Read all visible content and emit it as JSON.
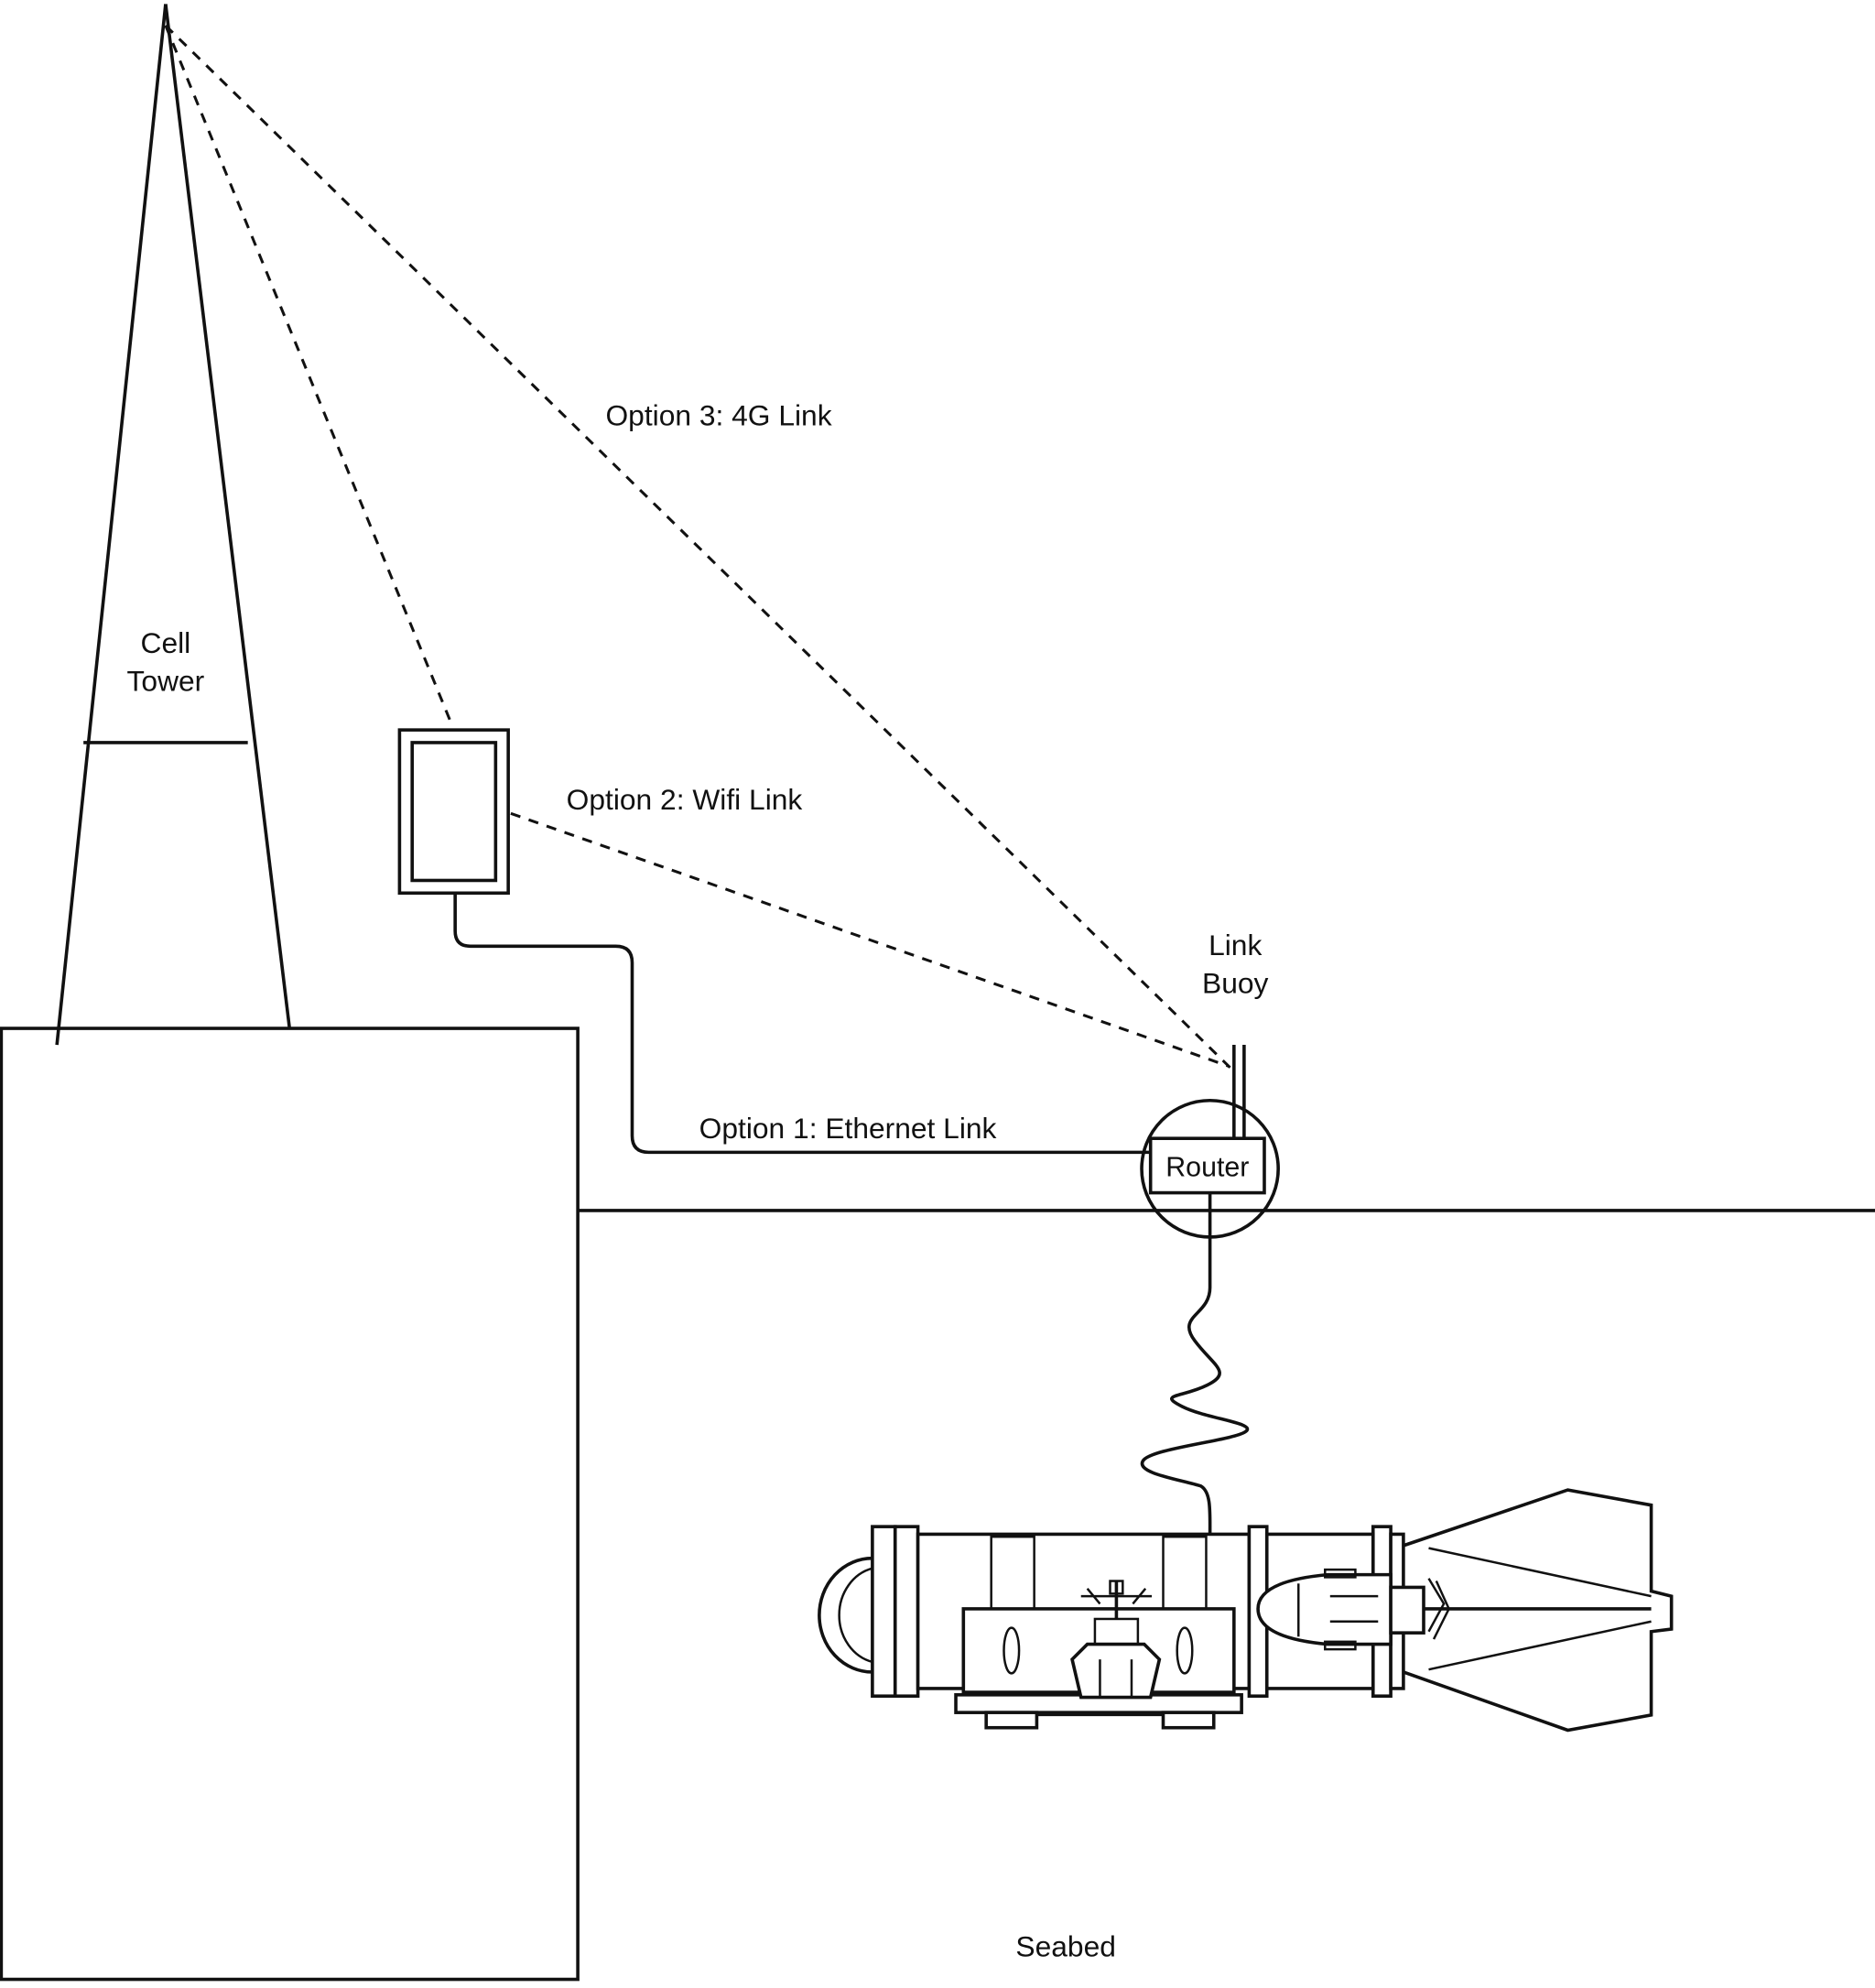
{
  "labels": {
    "cell_tower": [
      "Cell",
      "Tower"
    ],
    "option3": "Option 3: 4G Link",
    "option2": "Option 2: Wifi Link",
    "option1": "Option 1: Ethernet Link",
    "link_buoy": [
      "Link",
      "Buoy"
    ],
    "router": "Router",
    "seabed": "Seabed"
  },
  "colors": {
    "stroke": "#111111",
    "background": "#ffffff"
  }
}
